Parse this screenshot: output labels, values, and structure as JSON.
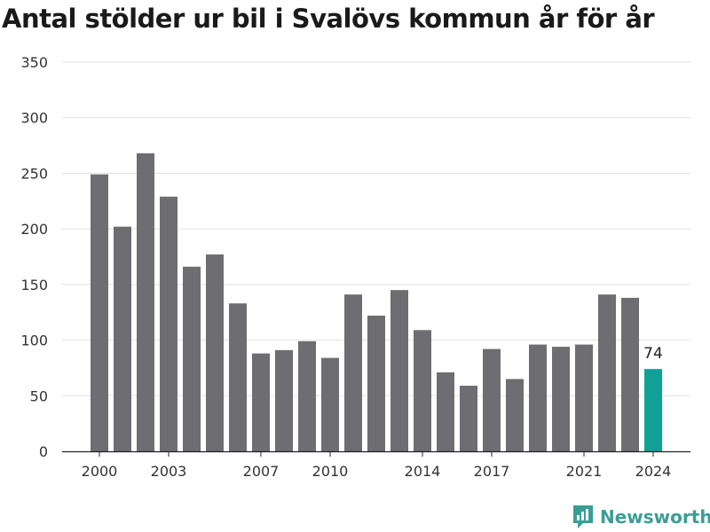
{
  "chart_data": {
    "type": "bar",
    "title": "Antal stölder ur bil i Svalövs kommun år för år",
    "xlabel": "",
    "ylabel": "",
    "ylim": [
      0,
      350
    ],
    "yticks": [
      0,
      50,
      100,
      150,
      200,
      250,
      300,
      350
    ],
    "categories": [
      "2000",
      "2001",
      "2002",
      "2003",
      "2004",
      "2005",
      "2006",
      "2007",
      "2008",
      "2009",
      "2010",
      "2011",
      "2012",
      "2013",
      "2014",
      "2015",
      "2016",
      "2017",
      "2018",
      "2019",
      "2020",
      "2021",
      "2022",
      "2023",
      "2024"
    ],
    "x_tick_labels": [
      "2000",
      "2003",
      "2007",
      "2010",
      "2014",
      "2017",
      "2021",
      "2024"
    ],
    "values": [
      249,
      202,
      268,
      229,
      166,
      177,
      133,
      88,
      91,
      99,
      84,
      141,
      122,
      145,
      109,
      71,
      59,
      92,
      65,
      96,
      94,
      96,
      141,
      138,
      74
    ],
    "data_labels": [
      {
        "category": "2024",
        "text": "74"
      }
    ],
    "grid": true,
    "colors": {
      "bar": "#6e6d72",
      "highlight": "#0fa196",
      "grid": "#e0e0e0",
      "axis": "#222222"
    }
  },
  "brand": {
    "name": "Newsworthy",
    "icon": "newsworthy-logo-icon",
    "color": "#3a9e96"
  }
}
